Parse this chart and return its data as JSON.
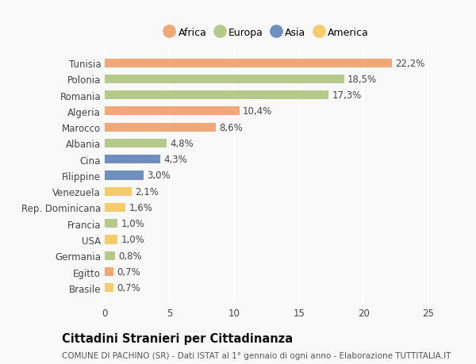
{
  "categories": [
    "Tunisia",
    "Polonia",
    "Romania",
    "Algeria",
    "Marocco",
    "Albania",
    "Cina",
    "Filippine",
    "Venezuela",
    "Rep. Dominicana",
    "Francia",
    "USA",
    "Germania",
    "Egitto",
    "Brasile"
  ],
  "values": [
    22.2,
    18.5,
    17.3,
    10.4,
    8.6,
    4.8,
    4.3,
    3.0,
    2.1,
    1.6,
    1.0,
    1.0,
    0.8,
    0.7,
    0.7
  ],
  "labels": [
    "22,2%",
    "18,5%",
    "17,3%",
    "10,4%",
    "8,6%",
    "4,8%",
    "4,3%",
    "3,0%",
    "2,1%",
    "1,6%",
    "1,0%",
    "1,0%",
    "0,8%",
    "0,7%",
    "0,7%"
  ],
  "continents": [
    "Africa",
    "Europa",
    "Europa",
    "Africa",
    "Africa",
    "Europa",
    "Asia",
    "Asia",
    "America",
    "America",
    "Europa",
    "America",
    "Europa",
    "Africa",
    "America"
  ],
  "colors": {
    "Africa": "#F0A878",
    "Europa": "#B5C98A",
    "Asia": "#6F8FBF",
    "America": "#F5CC6A"
  },
  "legend_order": [
    "Africa",
    "Europa",
    "Asia",
    "America"
  ],
  "xlim": [
    0,
    25
  ],
  "xticks": [
    0,
    5,
    10,
    15,
    20,
    25
  ],
  "title": "Cittadini Stranieri per Cittadinanza",
  "subtitle": "COMUNE DI PACHINO (SR) - Dati ISTAT al 1° gennaio di ogni anno - Elaborazione TUTTITALIA.IT",
  "bg_color": "#f9f9f9",
  "bar_height": 0.55,
  "label_fontsize": 8.5,
  "tick_fontsize": 8.5,
  "title_fontsize": 10.5,
  "subtitle_fontsize": 7.5
}
